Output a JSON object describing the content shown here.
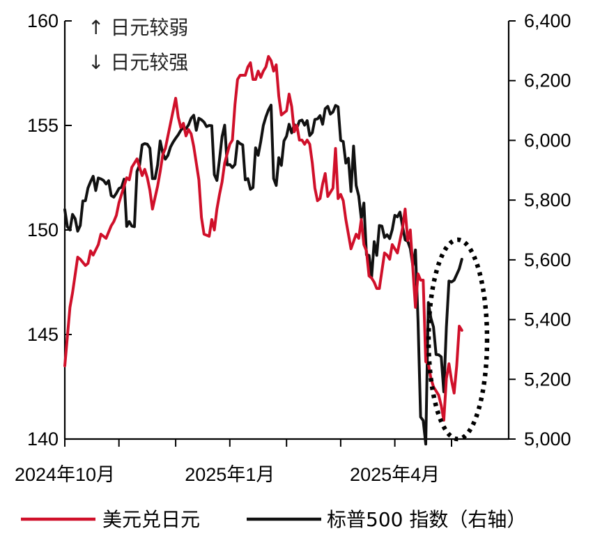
{
  "chart_data": {
    "type": "line",
    "title": "",
    "colors": {
      "usd_jpy": "#d0102a",
      "sp500": "#111111",
      "ellipse": "#000000"
    },
    "x_axis": {
      "labels": [
        "2024年10月",
        "2025年1月",
        "2025年4月"
      ]
    },
    "y_left": {
      "min": 140,
      "max": 160,
      "ticks": [
        "140",
        "145",
        "150",
        "155",
        "160"
      ]
    },
    "y_right": {
      "min": 5000,
      "max": 6400,
      "ticks": [
        "5,000",
        "5,200",
        "5,400",
        "5,600",
        "5,800",
        "6,000",
        "6,200",
        "6,400"
      ]
    },
    "annotations": {
      "up": "↑ 日元较弱",
      "down": "↓ 日元较强"
    },
    "legend": [
      {
        "name": "美元兑日元",
        "series": "usd_jpy"
      },
      {
        "name": "标普500 指数（右轴）",
        "series": "sp500"
      }
    ],
    "series": [
      {
        "name": "美元兑日元",
        "axis": "left",
        "points": [
          [
            0,
            143.5
          ],
          [
            2,
            146.3
          ],
          [
            3,
            147.0
          ],
          [
            5,
            148.7
          ],
          [
            6,
            148.6
          ],
          [
            8,
            148.3
          ],
          [
            9,
            148.4
          ],
          [
            10,
            149.0
          ],
          [
            11,
            148.8
          ],
          [
            13,
            149.3
          ],
          [
            14,
            149.8
          ],
          [
            15,
            149.7
          ],
          [
            16,
            149.6
          ],
          [
            18,
            150.2
          ],
          [
            19,
            150.4
          ],
          [
            20,
            150.7
          ],
          [
            21,
            151.3
          ],
          [
            23,
            152.1
          ],
          [
            24,
            152.5
          ],
          [
            25,
            152.4
          ],
          [
            26,
            153.0
          ],
          [
            27,
            153.2
          ],
          [
            28,
            153.4
          ],
          [
            30,
            152.6
          ],
          [
            31,
            152.9
          ],
          [
            32,
            152.5
          ],
          [
            33,
            151.9
          ],
          [
            34,
            151.0
          ],
          [
            36,
            152.1
          ],
          [
            37,
            152.8
          ],
          [
            38,
            153.6
          ],
          [
            39,
            153.9
          ],
          [
            41,
            155.1
          ],
          [
            42,
            155.7
          ],
          [
            43,
            156.3
          ],
          [
            44,
            155.4
          ],
          [
            45,
            154.9
          ],
          [
            46,
            155.1
          ],
          [
            47,
            154.5
          ],
          [
            48,
            154.8
          ],
          [
            49,
            154.6
          ],
          [
            50,
            154.0
          ],
          [
            52,
            152.4
          ],
          [
            53,
            150.6
          ],
          [
            54,
            149.8
          ],
          [
            56,
            149.7
          ],
          [
            57,
            150.5
          ],
          [
            58,
            150.0
          ],
          [
            59,
            151.0
          ],
          [
            60,
            151.7
          ],
          [
            61,
            152.3
          ],
          [
            62,
            153.2
          ],
          [
            64,
            154.1
          ],
          [
            65,
            154.3
          ],
          [
            66,
            156.0
          ],
          [
            67,
            157.2
          ],
          [
            68,
            157.4
          ],
          [
            70,
            157.4
          ],
          [
            71,
            157.8
          ],
          [
            72,
            158.0
          ],
          [
            73,
            157.2
          ],
          [
            74,
            157.2
          ],
          [
            75,
            157.6
          ],
          [
            76,
            157.3
          ],
          [
            77,
            157.6
          ],
          [
            78,
            157.8
          ],
          [
            79,
            158.3
          ],
          [
            80,
            158.1
          ],
          [
            81,
            157.6
          ],
          [
            82,
            157.9
          ],
          [
            83,
            156.4
          ],
          [
            84,
            155.5
          ],
          [
            86,
            155.7
          ],
          [
            87,
            156.5
          ],
          [
            88,
            155.9
          ],
          [
            89,
            154.7
          ],
          [
            90,
            155.0
          ],
          [
            91,
            154.3
          ],
          [
            92,
            154.3
          ],
          [
            93,
            154.1
          ],
          [
            94,
            154.3
          ],
          [
            95,
            154.1
          ],
          [
            96,
            153.2
          ],
          [
            97,
            152.0
          ],
          [
            98,
            151.4
          ],
          [
            99,
            151.5
          ],
          [
            100,
            152.2
          ],
          [
            101,
            152.7
          ],
          [
            102,
            151.6
          ],
          [
            104,
            152.0
          ],
          [
            105,
            153.9
          ],
          [
            106,
            151.5
          ],
          [
            107,
            151.7
          ],
          [
            108,
            151.4
          ],
          [
            109,
            150.5
          ],
          [
            111,
            149.1
          ],
          [
            113,
            149.8
          ],
          [
            114,
            149.6
          ],
          [
            115,
            150.5
          ],
          [
            116,
            149.3
          ],
          [
            117,
            149.0
          ],
          [
            118,
            147.8
          ],
          [
            119,
            147.7
          ],
          [
            120,
            147.5
          ],
          [
            121,
            147.2
          ],
          [
            122,
            147.2
          ],
          [
            124,
            148.9
          ],
          [
            125,
            148.8
          ],
          [
            126,
            148.6
          ],
          [
            127,
            149.3
          ],
          [
            129,
            148.9
          ],
          [
            131,
            150.1
          ],
          [
            132,
            151.0
          ],
          [
            133,
            149.5
          ],
          [
            134,
            150.0
          ],
          [
            136,
            146.3
          ],
          [
            137,
            147.9
          ],
          [
            138,
            147.6
          ],
          [
            139,
            147.6
          ],
          [
            140,
            143.7
          ],
          [
            141,
            143.6
          ],
          [
            142,
            142.9
          ],
          [
            143,
            142.5
          ],
          [
            144,
            142.3
          ],
          [
            145,
            142.1
          ],
          [
            146,
            141.6
          ],
          [
            147,
            140.9
          ],
          [
            148,
            142.9
          ],
          [
            149,
            143.6
          ],
          [
            150,
            142.8
          ],
          [
            151,
            142.2
          ],
          [
            152,
            143.5
          ],
          [
            153,
            145.4
          ],
          [
            154,
            145.2
          ]
        ]
      },
      {
        "name": "标普500 指数（右轴）",
        "axis": "right",
        "points": [
          [
            0,
            5768
          ],
          [
            1,
            5711
          ],
          [
            2,
            5700
          ],
          [
            3,
            5752
          ],
          [
            4,
            5738
          ],
          [
            5,
            5696
          ],
          [
            6,
            5715
          ],
          [
            7,
            5797
          ],
          [
            8,
            5798
          ],
          [
            9,
            5841
          ],
          [
            10,
            5862
          ],
          [
            11,
            5880
          ],
          [
            12,
            5832
          ],
          [
            13,
            5874
          ],
          [
            14,
            5871
          ],
          [
            15,
            5866
          ],
          [
            16,
            5854
          ],
          [
            17,
            5865
          ],
          [
            18,
            5815
          ],
          [
            19,
            5810
          ],
          [
            20,
            5823
          ],
          [
            21,
            5839
          ],
          [
            22,
            5843
          ],
          [
            23,
            5870
          ],
          [
            24,
            5712
          ],
          [
            25,
            5728
          ],
          [
            26,
            5713
          ],
          [
            27,
            5711
          ],
          [
            28,
            5896
          ],
          [
            29,
            5917
          ],
          [
            30,
            5985
          ],
          [
            31,
            5989
          ],
          [
            32,
            5987
          ],
          [
            33,
            5974
          ],
          [
            34,
            5872
          ],
          [
            35,
            5872
          ],
          [
            36,
            5918
          ],
          [
            37,
            5998
          ],
          [
            38,
            5957
          ],
          [
            39,
            5937
          ],
          [
            40,
            5950
          ],
          [
            41,
            5978
          ],
          [
            42,
            5994
          ],
          [
            43,
            6007
          ],
          [
            44,
            6019
          ],
          [
            45,
            6034
          ],
          [
            46,
            6043
          ],
          [
            47,
            6039
          ],
          [
            48,
            6052
          ],
          [
            49,
            6074
          ],
          [
            50,
            6084
          ],
          [
            51,
            6034
          ],
          [
            52,
            6074
          ],
          [
            53,
            6069
          ],
          [
            54,
            6061
          ],
          [
            55,
            6046
          ],
          [
            56,
            6050
          ],
          [
            57,
            6049
          ],
          [
            58,
            5885
          ],
          [
            59,
            5866
          ],
          [
            60,
            5936
          ],
          [
            61,
            6013
          ],
          [
            62,
            6051
          ],
          [
            63,
            5918
          ],
          [
            64,
            5919
          ],
          [
            65,
            5909
          ],
          [
            66,
            5919
          ],
          [
            67,
            5997
          ],
          [
            68,
            5989
          ],
          [
            69,
            5985
          ],
          [
            70,
            5868
          ],
          [
            71,
            5872
          ],
          [
            72,
            5836
          ],
          [
            73,
            5842
          ],
          [
            74,
            5975
          ],
          [
            75,
            5950
          ],
          [
            76,
            5996
          ],
          [
            77,
            6050
          ],
          [
            78,
            6079
          ],
          [
            79,
            6102
          ],
          [
            80,
            6118
          ],
          [
            81,
            5872
          ],
          [
            82,
            5849
          ],
          [
            83,
            5942
          ],
          [
            84,
            5916
          ],
          [
            85,
            5998
          ],
          [
            86,
            6014
          ],
          [
            87,
            6054
          ],
          [
            88,
            6025
          ],
          [
            89,
            6053
          ],
          [
            90,
            6041
          ],
          [
            91,
            6065
          ],
          [
            92,
            6068
          ],
          [
            93,
            6051
          ],
          [
            94,
            6066
          ],
          [
            95,
            6016
          ],
          [
            96,
            6026
          ],
          [
            97,
            6070
          ],
          [
            98,
            6072
          ],
          [
            99,
            6083
          ],
          [
            100,
            6054
          ],
          [
            101,
            6106
          ],
          [
            102,
            6114
          ],
          [
            103,
            6088
          ],
          [
            104,
            6095
          ],
          [
            105,
            6117
          ],
          [
            106,
            6112
          ],
          [
            107,
            6000
          ],
          [
            108,
            5996
          ],
          [
            109,
            5924
          ],
          [
            110,
            5940
          ],
          [
            111,
            5829
          ],
          [
            112,
            5981
          ],
          [
            113,
            5849
          ],
          [
            114,
            5814
          ],
          [
            115,
            5738
          ],
          [
            116,
            5790
          ],
          [
            117,
            5617
          ],
          [
            118,
            5615
          ],
          [
            119,
            5542
          ],
          [
            120,
            5661
          ],
          [
            121,
            5615
          ],
          [
            122,
            5715
          ],
          [
            123,
            5713
          ],
          [
            124,
            5675
          ],
          [
            125,
            5684
          ],
          [
            126,
            5671
          ],
          [
            127,
            5701
          ],
          [
            128,
            5749
          ],
          [
            129,
            5744
          ],
          [
            130,
            5760
          ],
          [
            131,
            5712
          ],
          [
            132,
            5667
          ],
          [
            133,
            5662
          ],
          [
            134,
            5638
          ],
          [
            135,
            5580
          ],
          [
            136,
            5633
          ],
          [
            137,
            5396
          ],
          [
            138,
            5074
          ],
          [
            139,
            5062
          ],
          [
            140,
            4983
          ],
          [
            141,
            5457
          ],
          [
            142,
            5405
          ],
          [
            143,
            5375
          ],
          [
            144,
            5283
          ],
          [
            145,
            5282
          ],
          [
            146,
            5275
          ],
          [
            147,
            5158
          ],
          [
            148,
            5375
          ],
          [
            149,
            5529
          ],
          [
            150,
            5526
          ],
          [
            151,
            5532
          ],
          [
            152,
            5551
          ],
          [
            153,
            5570
          ],
          [
            154,
            5602
          ]
        ]
      }
    ]
  }
}
